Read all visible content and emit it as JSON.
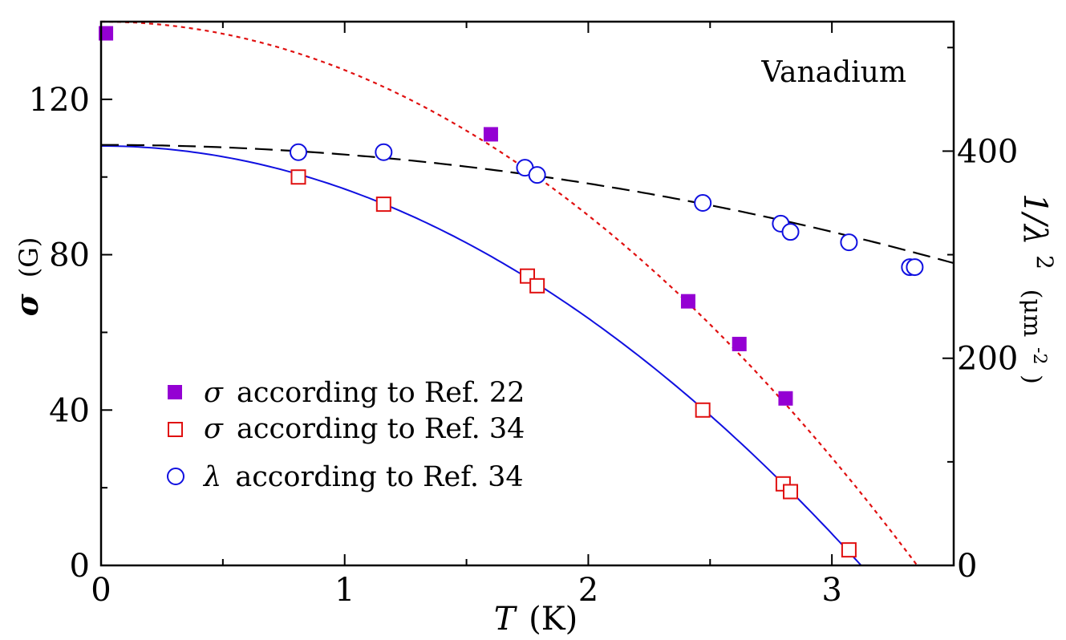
{
  "chart_data": {
    "type": "scatter",
    "annotation": "Vanadium",
    "xlabel": {
      "symbol": "T",
      "unit": "(K)"
    },
    "ylabel": {
      "symbol": "σ",
      "unit": "(G)"
    },
    "y2label": {
      "symbol": "1/λ",
      "superscript": "2",
      "unit": "(μm",
      "unit_sup": "-2",
      "unit_close": ")"
    },
    "xlim": [
      0,
      3.5
    ],
    "ylim": [
      0,
      140
    ],
    "y2lim": [
      0,
      525
    ],
    "x_ticks": [
      0,
      1,
      2,
      3
    ],
    "x_tick_labels": [
      "0",
      "1",
      "2",
      "3"
    ],
    "y_ticks": [
      0,
      40,
      80,
      120
    ],
    "y_tick_labels": [
      "0",
      "40",
      "80",
      "120"
    ],
    "y2_ticks": [
      0,
      200,
      400
    ],
    "y2_tick_labels": [
      "0",
      "200",
      "400"
    ],
    "grid": false,
    "legend_position": "lower-left",
    "legend": [
      {
        "symbol": "σ",
        "label": "according to Ref. 22"
      },
      {
        "symbol": "σ",
        "label": "according to Ref. 34"
      },
      {
        "symbol": "λ",
        "label": "according to Ref. 34"
      }
    ],
    "series": [
      {
        "axis": "left",
        "marker": "filled-square",
        "color": "#9400D3",
        "points": [
          [
            0.02,
            137
          ],
          [
            1.6,
            111
          ],
          [
            2.41,
            68
          ],
          [
            2.62,
            57
          ],
          [
            2.81,
            43
          ]
        ]
      },
      {
        "axis": "left",
        "marker": "open-square",
        "color": "#E01010",
        "points": [
          [
            0.81,
            100
          ],
          [
            1.16,
            93
          ],
          [
            1.75,
            74.5
          ],
          [
            1.79,
            72
          ],
          [
            2.47,
            40
          ],
          [
            2.8,
            21
          ],
          [
            2.83,
            19
          ],
          [
            3.07,
            4
          ]
        ]
      },
      {
        "axis": "right",
        "marker": "open-circle",
        "color": "#1010E0",
        "points": [
          [
            0.81,
            399
          ],
          [
            1.16,
            399
          ],
          [
            1.74,
            384
          ],
          [
            1.79,
            377
          ],
          [
            2.47,
            350
          ],
          [
            2.79,
            330
          ],
          [
            2.83,
            322
          ],
          [
            3.07,
            312
          ],
          [
            3.32,
            288
          ],
          [
            3.34,
            288
          ]
        ]
      }
    ],
    "fits": [
      {
        "axis": "left",
        "style": "dotted",
        "color": "#E01010",
        "y0": 140,
        "tc": 3.35
      },
      {
        "axis": "left",
        "style": "solid",
        "color": "#1010E0",
        "y0": 108,
        "tc": 3.12
      },
      {
        "axis": "right",
        "style": "dashed",
        "color": "#000000",
        "y0": 406,
        "tc": 6.6
      }
    ]
  }
}
